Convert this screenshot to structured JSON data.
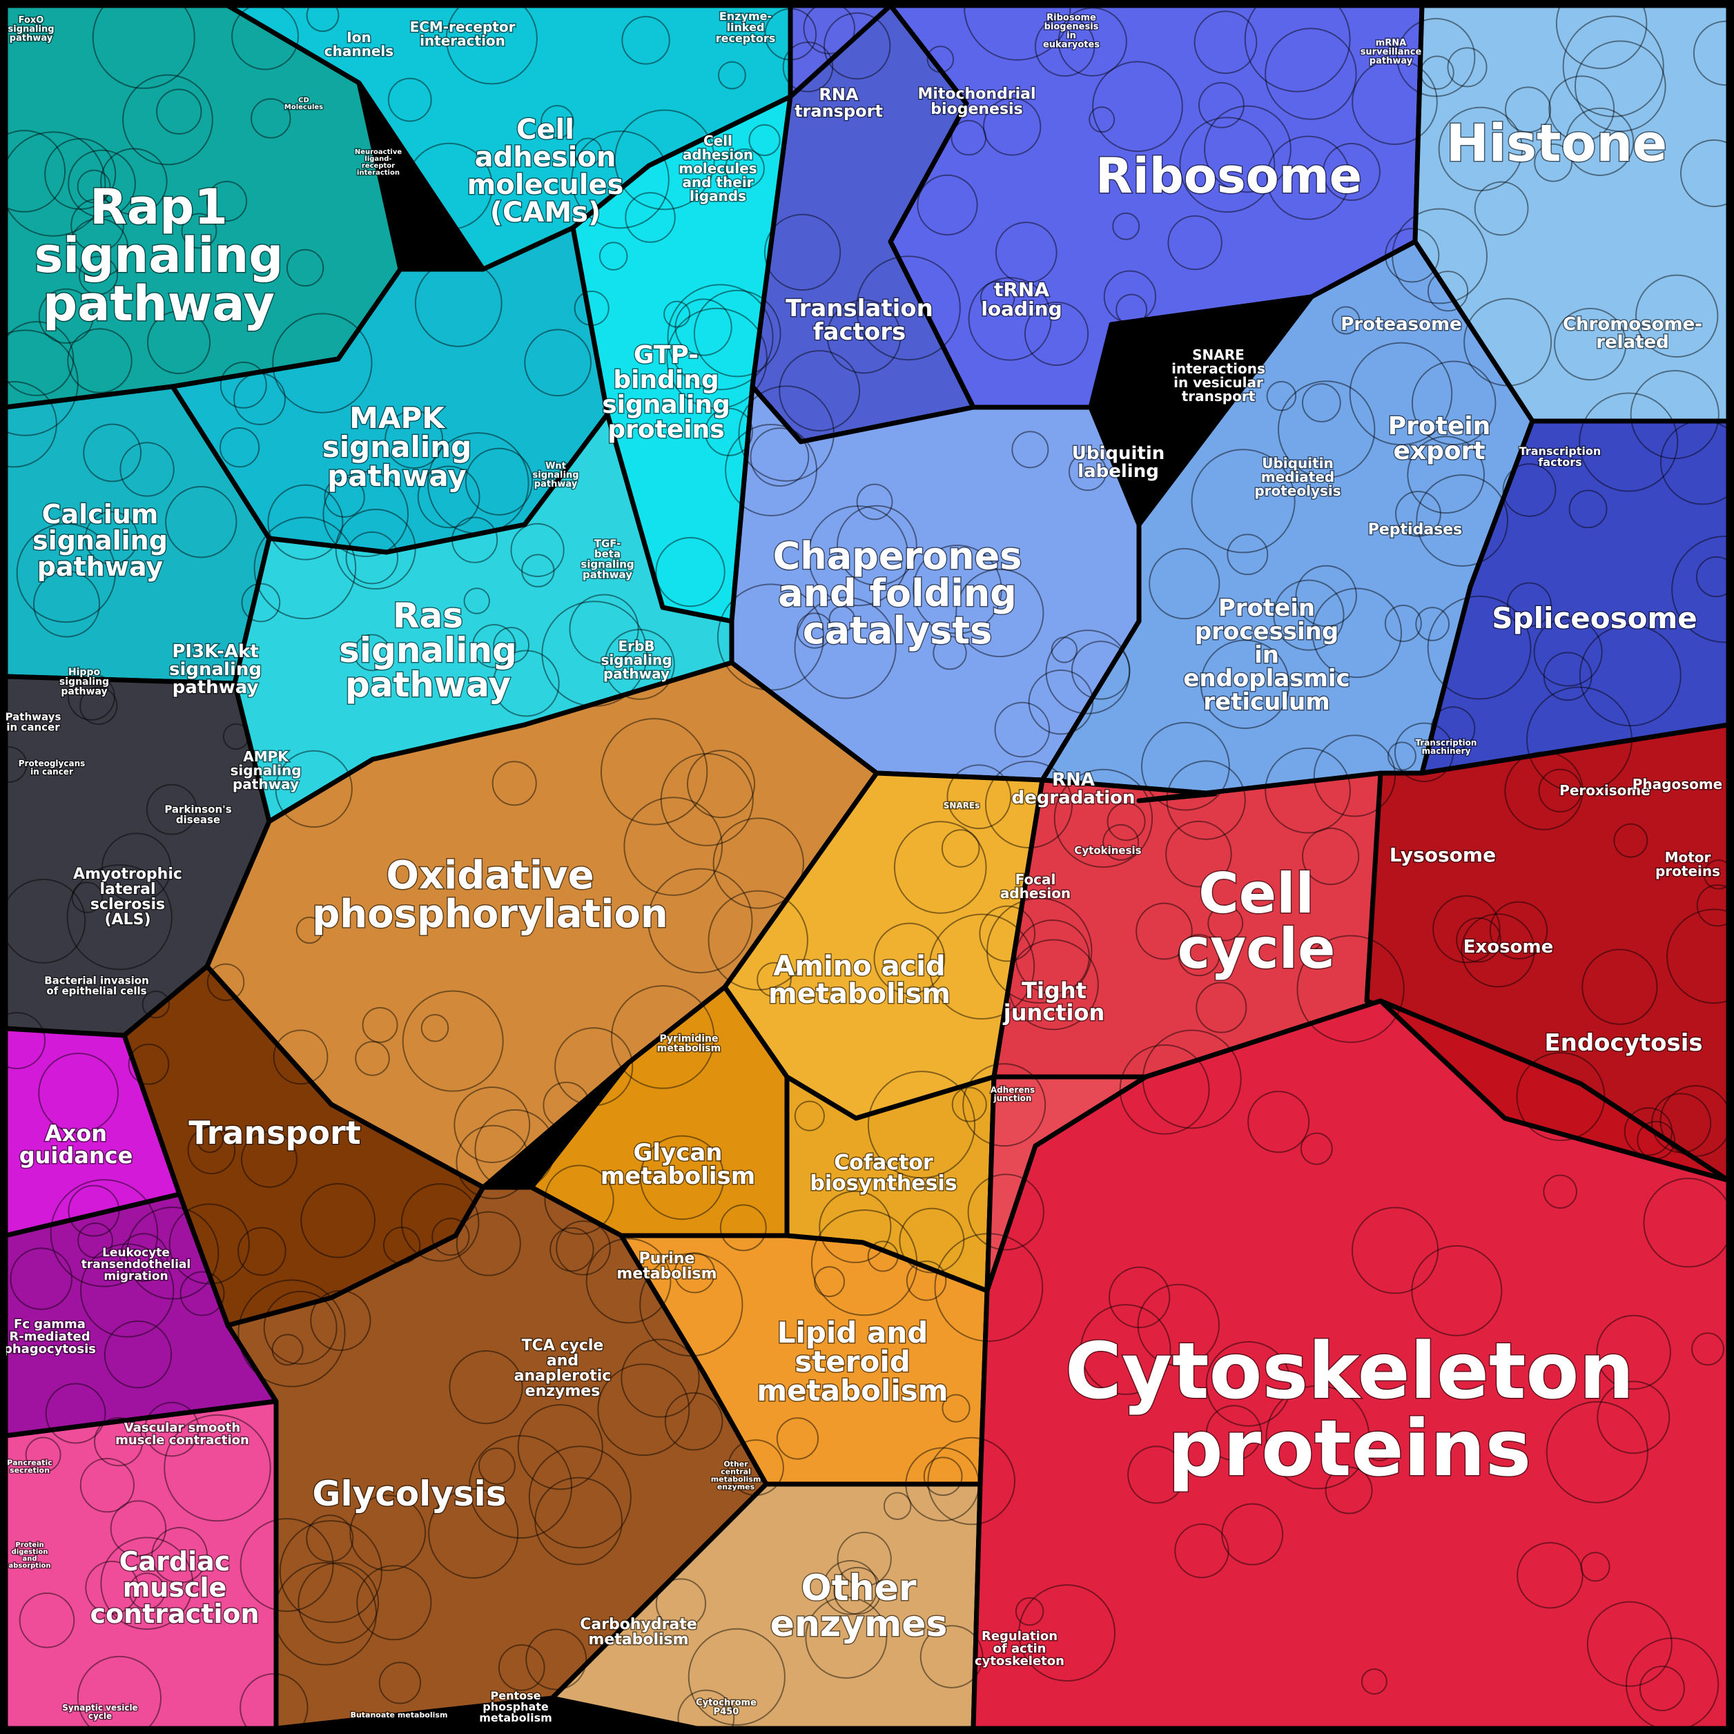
{
  "regions": [
    {
      "id": "rap1",
      "color": "#0fa7a0",
      "lines": [
        "Rap1",
        "signaling",
        "pathway"
      ]
    },
    {
      "id": "cell-adhesion",
      "color": "#0ec6d8",
      "lines": [
        "Cell",
        "adhesion",
        "molecules",
        "(CAMs)"
      ]
    },
    {
      "id": "gtp",
      "color": "#12e2ee",
      "lines": [
        "GTP-",
        "binding",
        "signaling",
        "proteins"
      ]
    },
    {
      "id": "mapk",
      "color": "#13b9cf",
      "lines": [
        "MAPK",
        "signaling",
        "pathway"
      ]
    },
    {
      "id": "calcium",
      "color": "#17b5c4",
      "lines": [
        "Calcium",
        "signaling",
        "pathway"
      ]
    },
    {
      "id": "ras",
      "color": "#2dd4e0",
      "lines": [
        "Ras",
        "signaling",
        "pathway"
      ]
    },
    {
      "id": "pathways-cancer",
      "color": "#3a3a44",
      "lines": [
        "Amyotrophic",
        "lateral",
        "sclerosis",
        "(ALS)"
      ]
    },
    {
      "id": "ribosome",
      "color": "#5c66ea",
      "lines": [
        "Ribosome"
      ]
    },
    {
      "id": "translation",
      "color": "#4f5fd2",
      "lines": [
        "Translation",
        "factors"
      ]
    },
    {
      "id": "mito",
      "color": "#5d66e4",
      "lines": [
        "Mitochondrial",
        "biogenesis"
      ]
    },
    {
      "id": "histone",
      "color": "#8cc3ee",
      "lines": [
        "Histone"
      ]
    },
    {
      "id": "chaperones",
      "color": "#7ea3ef",
      "lines": [
        "Chaperones",
        "and folding",
        "catalysts"
      ]
    },
    {
      "id": "protein-processing",
      "color": "#74a7ea",
      "lines": [
        "Protein",
        "processing",
        "in",
        "endoplasmic",
        "reticulum"
      ]
    },
    {
      "id": "spliceosome",
      "color": "#3b48c4",
      "lines": [
        "Spliceosome"
      ]
    },
    {
      "id": "oxphos",
      "color": "#d28a3a",
      "lines": [
        "Oxidative",
        "phosphorylation"
      ]
    },
    {
      "id": "amino",
      "color": "#f0b030",
      "lines": [
        "Amino acid",
        "metabolism"
      ]
    },
    {
      "id": "transport",
      "color": "#7f3a06",
      "lines": [
        "Transport"
      ]
    },
    {
      "id": "glycan",
      "color": "#e0920e",
      "lines": [
        "Glycan",
        "metabolism"
      ]
    },
    {
      "id": "cofactor",
      "color": "#e8a624",
      "lines": [
        "Cofactor",
        "biosynthesis"
      ]
    },
    {
      "id": "glycolysis",
      "color": "#9a5520",
      "lines": [
        "Glycolysis"
      ]
    },
    {
      "id": "lipid",
      "color": "#ef9a2a",
      "lines": [
        "Lipid and",
        "steroid",
        "metabolism"
      ]
    },
    {
      "id": "other-enzymes",
      "color": "#d9a86a",
      "lines": [
        "Other",
        "enzymes"
      ]
    },
    {
      "id": "axon",
      "color": "#d21ad8",
      "lines": [
        "Axon",
        "guidance"
      ]
    },
    {
      "id": "fc-gamma",
      "color": "#a012a0",
      "lines": [
        "Fc gamma",
        "R-mediated",
        "phagocytosis"
      ]
    },
    {
      "id": "cardiac",
      "color": "#ef4c9a",
      "lines": [
        "Cardiac",
        "muscle",
        "contraction"
      ]
    },
    {
      "id": "cell-cycle",
      "color": "#e03a48",
      "lines": [
        "Cell",
        "cycle"
      ]
    },
    {
      "id": "tight",
      "color": "#e84a55",
      "lines": [
        "Tight",
        "junction"
      ]
    },
    {
      "id": "lysosome",
      "color": "#b5121c",
      "lines": [
        "Lysosome"
      ]
    },
    {
      "id": "endocytosis",
      "color": "#c2101c",
      "lines": [
        "Endocytosis"
      ]
    },
    {
      "id": "cytoskeleton",
      "color": "#e0213f",
      "lines": [
        "Cytoskeleton",
        "proteins"
      ]
    }
  ],
  "labels": [
    {
      "id": "rap1",
      "lines": [
        "Rap1",
        "signaling",
        "pathway"
      ]
    },
    {
      "id": "ion",
      "lines": [
        "Ion",
        "channels"
      ]
    },
    {
      "id": "ecm",
      "lines": [
        "ECM-receptor",
        "interaction"
      ]
    },
    {
      "id": "enzyme-linked",
      "lines": [
        "Enzyme-",
        "linked",
        "receptors"
      ]
    },
    {
      "id": "cams",
      "lines": [
        "Cell",
        "adhesion",
        "molecules",
        "(CAMs)"
      ]
    },
    {
      "id": "cell-adh-ligands",
      "lines": [
        "Cell",
        "adhesion",
        "molecules",
        "and their",
        "ligands"
      ]
    },
    {
      "id": "gtp",
      "lines": [
        "GTP-",
        "binding",
        "signaling",
        "proteins"
      ]
    },
    {
      "id": "mapk",
      "lines": [
        "MAPK",
        "signaling",
        "pathway"
      ]
    },
    {
      "id": "calcium",
      "lines": [
        "Calcium",
        "signaling",
        "pathway"
      ]
    },
    {
      "id": "ras",
      "lines": [
        "Ras",
        "signaling",
        "pathway"
      ]
    },
    {
      "id": "pi3k",
      "lines": [
        "PI3K-Akt",
        "signaling",
        "pathway"
      ]
    },
    {
      "id": "ampk",
      "lines": [
        "AMPK",
        "signaling",
        "pathway"
      ]
    },
    {
      "id": "hippo",
      "lines": [
        "Hippo",
        "signaling",
        "pathway"
      ]
    },
    {
      "id": "wnt",
      "lines": [
        "Wnt",
        "signaling",
        "pathway"
      ]
    },
    {
      "id": "tgf",
      "lines": [
        "TGF-",
        "beta",
        "signaling",
        "pathway"
      ]
    },
    {
      "id": "erbb",
      "lines": [
        "ErbB",
        "signaling",
        "pathway"
      ]
    },
    {
      "id": "pathways-in-cancer",
      "lines": [
        "Pathways",
        "in cancer"
      ]
    },
    {
      "id": "proteoglycans",
      "lines": [
        "Proteoglycans",
        "in cancer"
      ]
    },
    {
      "id": "parkinsons",
      "lines": [
        "Parkinson's",
        "disease"
      ]
    },
    {
      "id": "als",
      "lines": [
        "Amyotrophic",
        "lateral",
        "sclerosis",
        "(ALS)"
      ]
    },
    {
      "id": "bacterial",
      "lines": [
        "Bacterial invasion",
        "of epithelial cells"
      ]
    },
    {
      "id": "rna-transport",
      "lines": [
        "RNA",
        "transport"
      ]
    },
    {
      "id": "mito",
      "lines": [
        "Mitochondrial",
        "biogenesis"
      ]
    },
    {
      "id": "ribosome-biogenesis",
      "lines": [
        "Ribosome",
        "biogenesis",
        "in",
        "eukaryotes"
      ]
    },
    {
      "id": "ribosome",
      "lines": [
        "Ribosome"
      ]
    },
    {
      "id": "mrna-surveillance",
      "lines": [
        "mRNA",
        "surveillance",
        "pathway"
      ]
    },
    {
      "id": "histone",
      "lines": [
        "Histone"
      ]
    },
    {
      "id": "translation",
      "lines": [
        "Translation",
        "factors"
      ]
    },
    {
      "id": "trna",
      "lines": [
        "tRNA",
        "loading"
      ]
    },
    {
      "id": "snare",
      "lines": [
        "SNARE",
        "interactions",
        "in vesicular",
        "transport"
      ]
    },
    {
      "id": "proteasome",
      "lines": [
        "Proteasome"
      ]
    },
    {
      "id": "chromosome",
      "lines": [
        "Chromosome-",
        "related"
      ]
    },
    {
      "id": "ubiquitin-labeling",
      "lines": [
        "Ubiquitin",
        "labeling"
      ]
    },
    {
      "id": "ubiquitin-mediated",
      "lines": [
        "Ubiquitin",
        "mediated",
        "proteolysis"
      ]
    },
    {
      "id": "protein-export",
      "lines": [
        "Protein",
        "export"
      ]
    },
    {
      "id": "transcription-factors",
      "lines": [
        "Transcription",
        "factors"
      ]
    },
    {
      "id": "peptidases",
      "lines": [
        "Peptidases"
      ]
    },
    {
      "id": "chaperones",
      "lines": [
        "Chaperones",
        "and folding",
        "catalysts"
      ]
    },
    {
      "id": "protein-processing",
      "lines": [
        "Protein",
        "processing",
        "in",
        "endoplasmic",
        "reticulum"
      ]
    },
    {
      "id": "spliceosome",
      "lines": [
        "Spliceosome"
      ]
    },
    {
      "id": "transcription-machinery",
      "lines": [
        "Transcription",
        "machinery"
      ]
    },
    {
      "id": "rna-degradation",
      "lines": [
        "RNA",
        "degradation"
      ]
    },
    {
      "id": "snares",
      "lines": [
        "SNAREs"
      ]
    },
    {
      "id": "oxphos",
      "lines": [
        "Oxidative",
        "phosphorylation"
      ]
    },
    {
      "id": "amino",
      "lines": [
        "Amino acid",
        "metabolism"
      ]
    },
    {
      "id": "pyrimidine",
      "lines": [
        "Pyrimidine",
        "metabolism"
      ]
    },
    {
      "id": "transport",
      "lines": [
        "Transport"
      ]
    },
    {
      "id": "glycan",
      "lines": [
        "Glycan",
        "metabolism"
      ]
    },
    {
      "id": "cofactor",
      "lines": [
        "Cofactor",
        "biosynthesis"
      ]
    },
    {
      "id": "purine",
      "lines": [
        "Purine",
        "metabolism"
      ]
    },
    {
      "id": "tca",
      "lines": [
        "TCA cycle",
        "and",
        "anaplerotic",
        "enzymes"
      ]
    },
    {
      "id": "lipid",
      "lines": [
        "Lipid and",
        "steroid",
        "metabolism"
      ]
    },
    {
      "id": "glycolysis",
      "lines": [
        "Glycolysis"
      ]
    },
    {
      "id": "other-central",
      "lines": [
        "Other",
        "central",
        "metabolism",
        "enzymes"
      ]
    },
    {
      "id": "other-enzymes",
      "lines": [
        "Other",
        "enzymes"
      ]
    },
    {
      "id": "carbohydrate",
      "lines": [
        "Carbohydrate",
        "metabolism"
      ]
    },
    {
      "id": "pentose",
      "lines": [
        "Pentose",
        "phosphate",
        "metabolism"
      ]
    },
    {
      "id": "butanoate",
      "lines": [
        "Butanoate metabolism"
      ]
    },
    {
      "id": "cytochrome",
      "lines": [
        "Cytochrome",
        "P450"
      ]
    },
    {
      "id": "axon",
      "lines": [
        "Axon",
        "guidance"
      ]
    },
    {
      "id": "leukocyte",
      "lines": [
        "Leukocyte",
        "transendothelial",
        "migration"
      ]
    },
    {
      "id": "fc-gamma",
      "lines": [
        "Fc gamma",
        "R-mediated",
        "phagocytosis"
      ]
    },
    {
      "id": "vascular",
      "lines": [
        "Vascular smooth",
        "muscle contraction"
      ]
    },
    {
      "id": "pancreatic",
      "lines": [
        "Pancreatic",
        "secretion"
      ]
    },
    {
      "id": "cardiac",
      "lines": [
        "Cardiac",
        "muscle",
        "contraction"
      ]
    },
    {
      "id": "protein-digestion",
      "lines": [
        "Protein",
        "digestion",
        "and",
        "absorption"
      ]
    },
    {
      "id": "synaptic",
      "lines": [
        "Synaptic vesicle",
        "cycle"
      ]
    },
    {
      "id": "cytokinesis",
      "lines": [
        "Cytokinesis"
      ]
    },
    {
      "id": "focal",
      "lines": [
        "Focal",
        "adhesion"
      ]
    },
    {
      "id": "cell-cycle",
      "lines": [
        "Cell",
        "cycle"
      ]
    },
    {
      "id": "tight",
      "lines": [
        "Tight",
        "junction"
      ]
    },
    {
      "id": "adherens",
      "lines": [
        "Adherens",
        "junction"
      ]
    },
    {
      "id": "peroxisome",
      "lines": [
        "Peroxisome"
      ]
    },
    {
      "id": "phagosome",
      "lines": [
        "Phagosome"
      ]
    },
    {
      "id": "lysosome",
      "lines": [
        "Lysosome"
      ]
    },
    {
      "id": "motor",
      "lines": [
        "Motor",
        "proteins"
      ]
    },
    {
      "id": "exosome",
      "lines": [
        "Exosome"
      ]
    },
    {
      "id": "endocytosis",
      "lines": [
        "Endocytosis"
      ]
    },
    {
      "id": "cytoskeleton",
      "lines": [
        "Cytoskeleton",
        "proteins"
      ]
    },
    {
      "id": "regulation-actin",
      "lines": [
        "Regulation",
        "of actin",
        "cytoskeleton"
      ]
    },
    {
      "id": "foxo",
      "lines": [
        "FoxO",
        "signaling",
        "pathway"
      ]
    },
    {
      "id": "cd-molecules",
      "lines": [
        "CD",
        "Molecules"
      ]
    },
    {
      "id": "neuroactive",
      "lines": [
        "Neuroactive",
        "ligand-",
        "receptor",
        "interaction"
      ]
    }
  ]
}
